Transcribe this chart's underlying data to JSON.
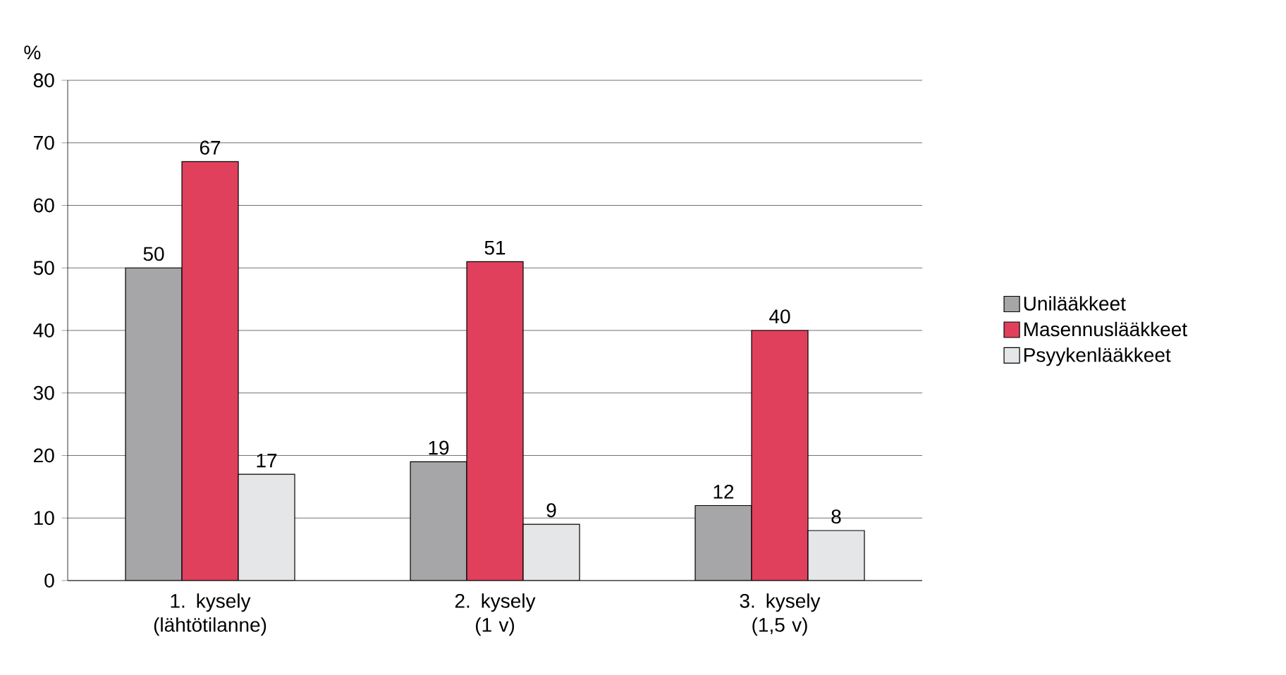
{
  "chart_data": {
    "type": "bar",
    "ylabel": "%",
    "categories": [
      "1. kysely (lähtötilanne)",
      "2. kysely (1 v)",
      "3. kysely (1,5 v)"
    ],
    "series": [
      {
        "name": "Unilääkkeet",
        "color": "#a6a6a9",
        "values": [
          50,
          19,
          12
        ]
      },
      {
        "name": "Masennuslääkkeet",
        "color": "#e0405c",
        "values": [
          67,
          51,
          40
        ]
      },
      {
        "name": "Psyykenlääkkeet",
        "color": "#e4e6e8",
        "values": [
          17,
          9,
          8
        ]
      }
    ],
    "ylim": [
      0,
      80
    ],
    "yticks": [
      0,
      10,
      20,
      30,
      40,
      50,
      60,
      70,
      80
    ],
    "grid": "y",
    "legend": "right",
    "data_labels": true
  }
}
